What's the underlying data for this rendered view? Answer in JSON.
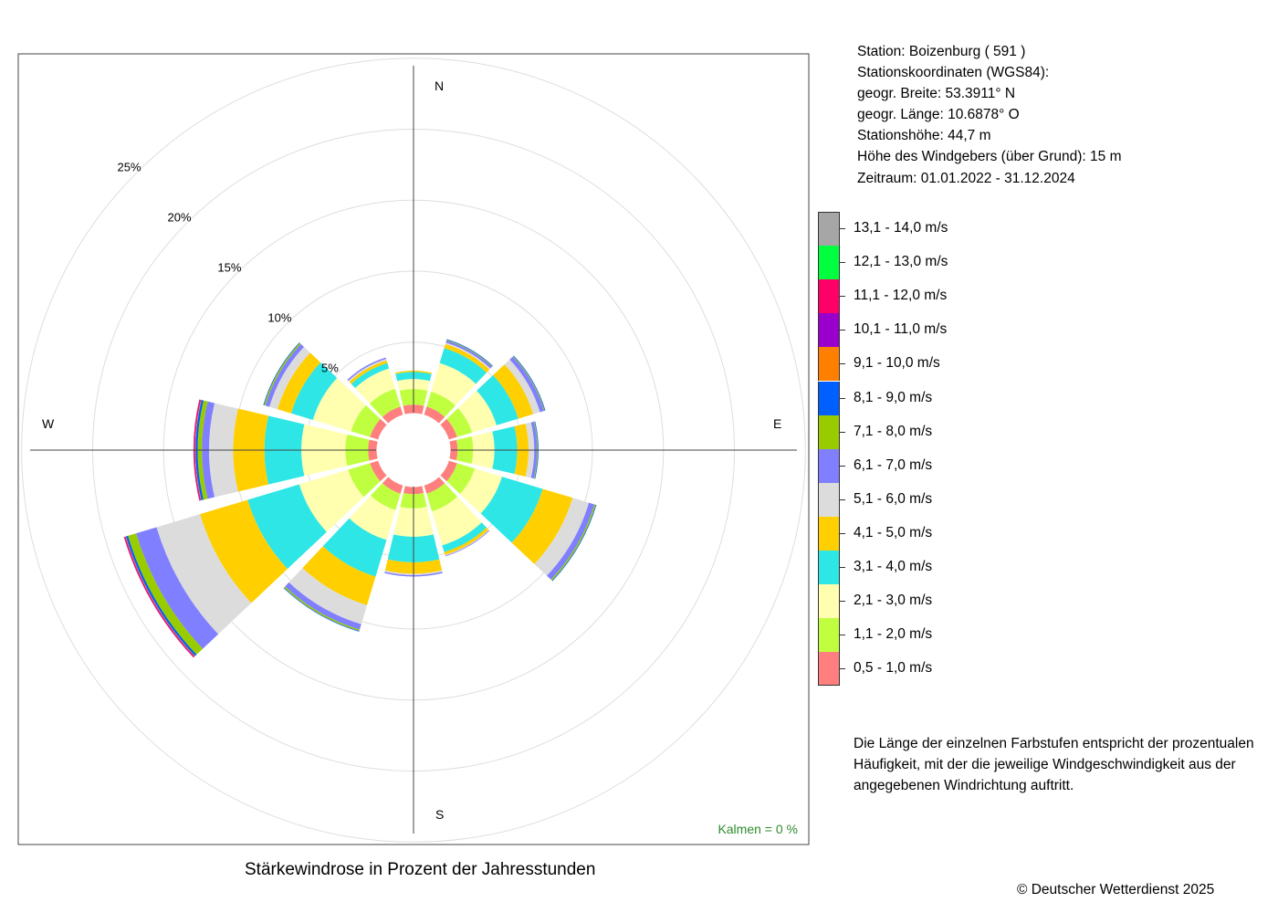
{
  "station": {
    "line1": "Station:  Boizenburg  ( 591 )",
    "line2": "Stationskoordinaten (WGS84):",
    "line3": "geogr. Breite: 53.3911° N",
    "line4": "geogr. Länge: 10.6878° O",
    "line5": "Stationshöhe: 44,7 m",
    "line6": "Höhe des Windgebers (über Grund): 15 m",
    "line7": "Zeitraum: 01.01.2022 - 31.12.2024"
  },
  "note": {
    "line1": "Die Länge der einzelnen Farbstufen entspricht der prozentualen",
    "line2": "Häufigkeit, mit der die jeweilige Windgeschwindigkeit aus der",
    "line3": "angegebenen Windrichtung auftritt."
  },
  "caption": "Stärkewindrose in Prozent der Jahresstunden",
  "copyright": "© Deutscher Wetterdienst  2025",
  "chart_data": {
    "type": "wind-rose",
    "title": "Stärkewindrose in Prozent der Jahresstunden",
    "unit": "%",
    "calm_label": "Kalmen  =  0 %",
    "compass": [
      "N",
      "E",
      "S",
      "W"
    ],
    "ring_labels": [
      "5%",
      "10%",
      "15%",
      "20%",
      "25%"
    ],
    "rings": [
      5,
      10,
      15,
      20,
      25
    ],
    "classes": [
      {
        "label": "0,5 - 1,0 m/s",
        "color": "#ff7f7f"
      },
      {
        "label": "1,1 - 2,0 m/s",
        "color": "#bfff3f"
      },
      {
        "label": "2,1 - 3,0 m/s",
        "color": "#ffffaf"
      },
      {
        "label": "3,1 - 4,0 m/s",
        "color": "#2ee6e6"
      },
      {
        "label": "4,1 - 5,0 m/s",
        "color": "#ffcf00"
      },
      {
        "label": "5,1 - 6,0 m/s",
        "color": "#dcdcdc"
      },
      {
        "label": "6,1 - 7,0 m/s",
        "color": "#7f7fff"
      },
      {
        "label": "7,1 - 8,0 m/s",
        "color": "#99cc00"
      },
      {
        "label": "8,1 - 9,0 m/s",
        "color": "#005fff"
      },
      {
        "label": "9,1 - 10,0 m/s",
        "color": "#ff8000"
      },
      {
        "label": "10,1 - 11,0 m/s",
        "color": "#9900cc"
      },
      {
        "label": "11,1 - 12,0 m/s",
        "color": "#ff0066"
      },
      {
        "label": "12,1 - 13,0 m/s",
        "color": "#00ff3f"
      },
      {
        "label": "13,1 - 14,0 m/s",
        "color": "#a6a6a6"
      }
    ],
    "directions": [
      {
        "deg": 0,
        "values": [
          0.6,
          1.1,
          0.7,
          0.5,
          0.1,
          0,
          0,
          0,
          0,
          0,
          0,
          0,
          0,
          0
        ]
      },
      {
        "deg": 30,
        "values": [
          0.6,
          1.1,
          2.1,
          1.1,
          0.3,
          0.1,
          0.15,
          0.05,
          0.05,
          0,
          0,
          0,
          0,
          0
        ]
      },
      {
        "deg": 60,
        "values": [
          0.6,
          1.1,
          1.8,
          1.6,
          1.1,
          0.5,
          0.3,
          0.05,
          0.05,
          0,
          0,
          0,
          0,
          0
        ]
      },
      {
        "deg": 90,
        "values": [
          0.5,
          1.1,
          1.5,
          1.6,
          0.8,
          0.4,
          0.2,
          0.05,
          0.05,
          0,
          0,
          0,
          0,
          0
        ]
      },
      {
        "deg": 120,
        "values": [
          0.6,
          1.3,
          2.0,
          3.0,
          2.2,
          1.2,
          0.4,
          0.1,
          0.05,
          0,
          0,
          0,
          0,
          0
        ]
      },
      {
        "deg": 150,
        "values": [
          0.6,
          1.3,
          2.5,
          0.5,
          0.2,
          0.05,
          0.05,
          0,
          0,
          0,
          0,
          0,
          0,
          0
        ]
      },
      {
        "deg": 180,
        "values": [
          0.5,
          1.0,
          2.0,
          1.8,
          0.8,
          0.1,
          0.1,
          0,
          0,
          0,
          0,
          0,
          0,
          0
        ]
      },
      {
        "deg": 210,
        "values": [
          0.6,
          1.2,
          2.2,
          2.7,
          2.1,
          1.4,
          0.4,
          0.1,
          0.05,
          0,
          0,
          0,
          0,
          0
        ]
      },
      {
        "deg": 240,
        "values": [
          0.6,
          1.6,
          3.6,
          3.8,
          3.5,
          3.2,
          1.5,
          0.6,
          0.15,
          0.05,
          0.05,
          0.05,
          0,
          0
        ]
      },
      {
        "deg": 270,
        "values": [
          0.6,
          1.6,
          3.1,
          2.6,
          2.2,
          1.7,
          0.5,
          0.3,
          0.15,
          0.05,
          0.05,
          0.05,
          0,
          0
        ]
      },
      {
        "deg": 300,
        "values": [
          0.6,
          1.4,
          2.8,
          1.6,
          1.0,
          0.6,
          0.3,
          0.1,
          0.05,
          0,
          0,
          0,
          0,
          0
        ]
      },
      {
        "deg": 330,
        "values": [
          0.6,
          1.3,
          1.5,
          0.4,
          0.2,
          0.1,
          0.1,
          0,
          0,
          0,
          0,
          0,
          0,
          0
        ]
      }
    ]
  }
}
